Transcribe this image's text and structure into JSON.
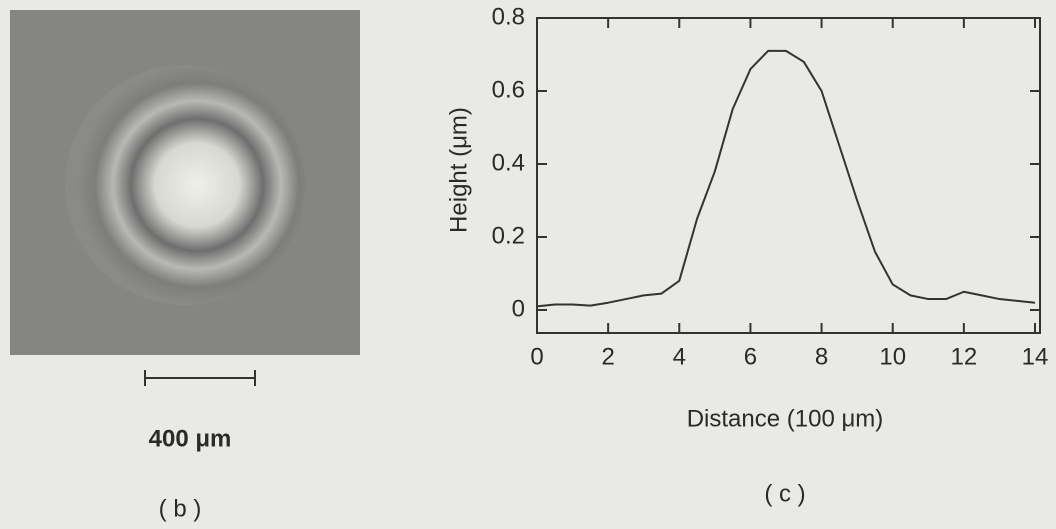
{
  "photo": {
    "scale_bar_label": "400 μm",
    "panel_label": "( b )"
  },
  "chart_data": {
    "type": "line",
    "panel_label": "( c )",
    "xlabel": "Distance (100 μm)",
    "ylabel": "Height (μm)",
    "x": [
      0,
      0.5,
      1,
      1.5,
      2,
      2.5,
      3,
      3.5,
      4,
      4.5,
      5,
      5.5,
      6,
      6.5,
      7,
      7.5,
      8,
      8.5,
      9,
      9.5,
      10,
      10.5,
      11,
      11.5,
      12,
      12.5,
      13,
      13.5,
      14
    ],
    "values": [
      0.01,
      0.015,
      0.015,
      0.012,
      0.02,
      0.03,
      0.04,
      0.045,
      0.08,
      0.25,
      0.38,
      0.55,
      0.66,
      0.71,
      0.71,
      0.68,
      0.6,
      0.45,
      0.3,
      0.16,
      0.07,
      0.04,
      0.03,
      0.03,
      0.05,
      0.04,
      0.03,
      0.025,
      0.02
    ],
    "color": "#333333",
    "xlim": [
      0,
      14
    ],
    "ylim": [
      -0.063,
      0.8
    ],
    "xticks": [
      0,
      2,
      4,
      6,
      8,
      10,
      12,
      14
    ],
    "yticks": [
      0,
      0.2,
      0.4,
      0.6,
      0.8
    ]
  }
}
